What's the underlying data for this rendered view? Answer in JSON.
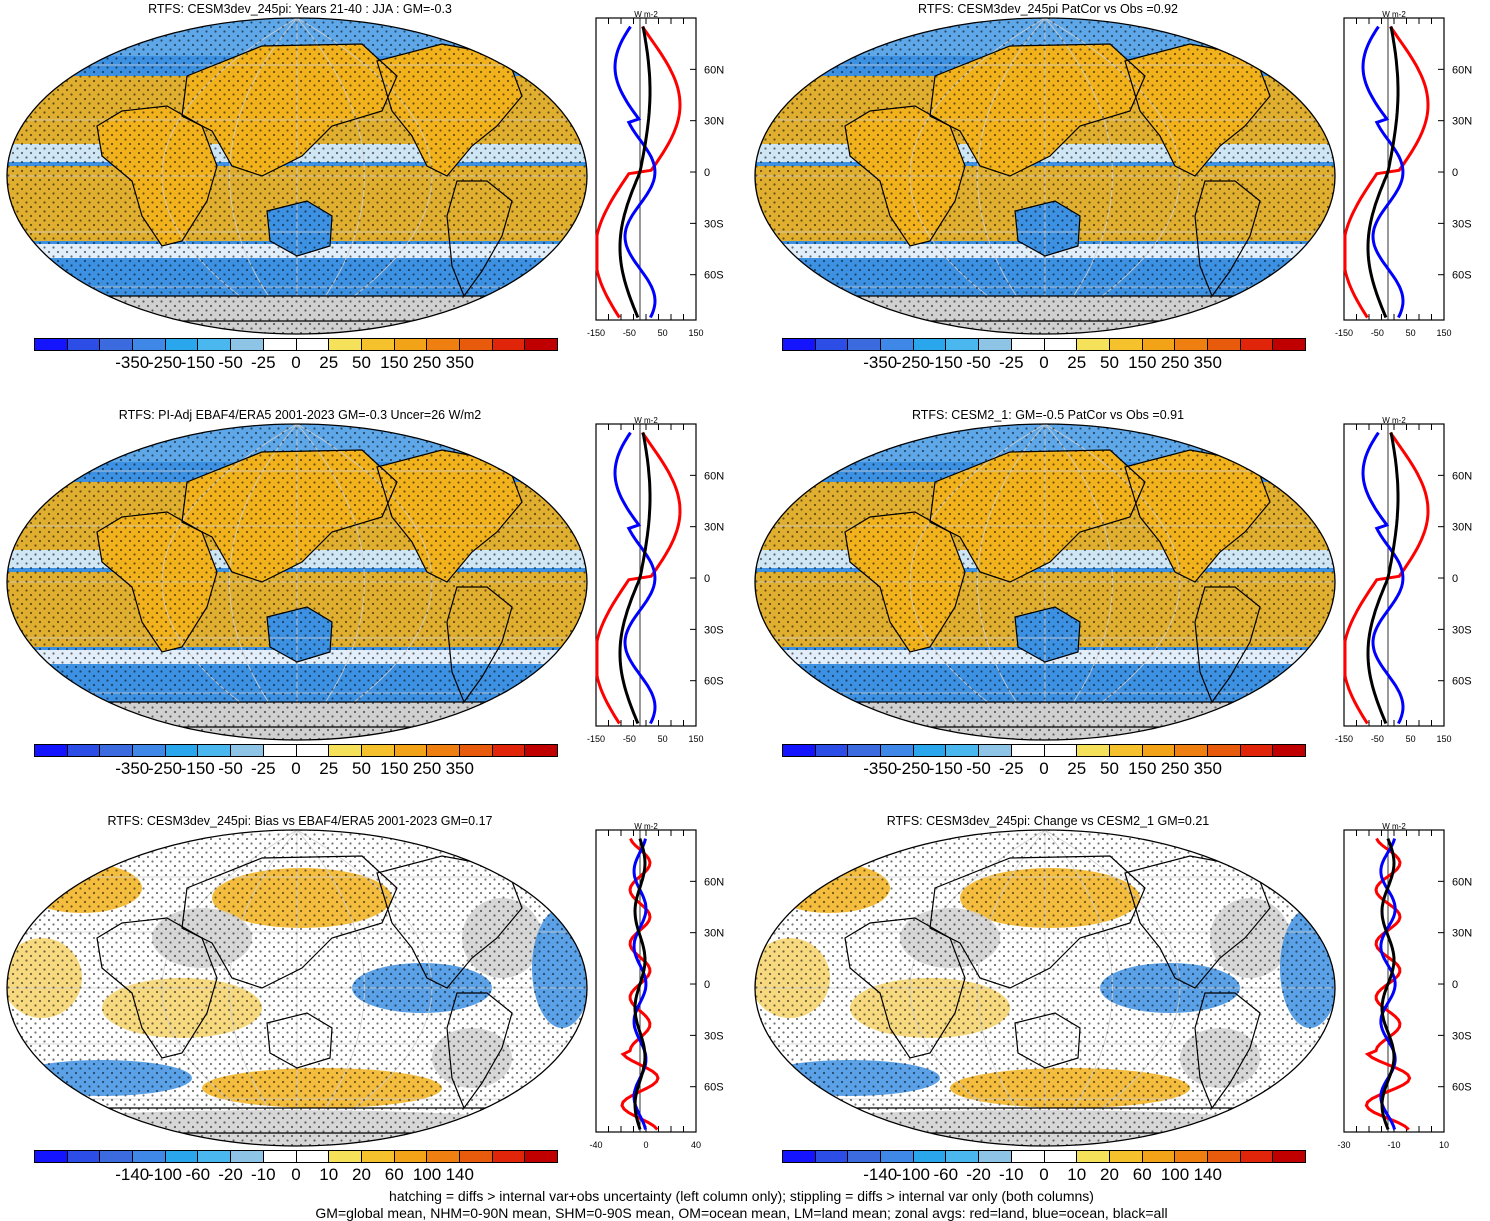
{
  "colorbar": {
    "colors": [
      "#1414ff",
      "#2c4de6",
      "#3c6be0",
      "#3f88e8",
      "#29a6ec",
      "#4ab7ef",
      "#8ec5e6",
      "#ffffff",
      "#ffffff",
      "#f6e25a",
      "#f5c22d",
      "#f3a318",
      "#ef7f10",
      "#e85a0c",
      "#e0250a",
      "#c00000"
    ],
    "labels_main": [
      "-350",
      "-250",
      "-150",
      "-50",
      "-25",
      "0",
      "25",
      "50",
      "150",
      "250",
      "350"
    ],
    "labels_bias": [
      "-140",
      "-100",
      "-60",
      "-20",
      "-10",
      "0",
      "10",
      "20",
      "60",
      "100",
      "140"
    ]
  },
  "palette": {
    "ocean": "#3d91e3",
    "warm": "#f2b21c",
    "warm_light": "#f6d36a",
    "gray": "#d0d0d0",
    "red": "#ff0000",
    "blue": "#0000ff",
    "black": "#000000"
  },
  "zonal": {
    "unit": "W m-2",
    "lat_labels": [
      "60N",
      "30N",
      "0",
      "30S",
      "60S"
    ],
    "x_labels_main": [
      "-150",
      "-50",
      "50",
      "150"
    ],
    "x_labels_bias": [
      "-40",
      "0",
      "40"
    ],
    "x_labels_change": [
      "-30",
      "-10",
      "10"
    ]
  },
  "panels": [
    {
      "title": "RTFS: CESM3dev_245pi: Years 21-40 : JJA : GM=-0.3"
    },
    {
      "title": "RTFS: CESM3dev_245pi PatCor vs Obs =0.92"
    },
    {
      "title": "RTFS: PI-Adj EBAF4/ERA5 2001-2023 GM=-0.3 Uncer=26 W/m2"
    },
    {
      "title": "RTFS: CESM2_1: GM=-0.5 PatCor vs Obs =0.91"
    },
    {
      "title": "RTFS: CESM3dev_245pi: Bias vs EBAF4/ERA5 2001-2023 GM=0.17"
    },
    {
      "title": "RTFS: CESM3dev_245pi: Change vs CESM2_1 GM=0.21"
    }
  ],
  "footer": {
    "line1": "hatching = diffs > internal var+obs uncertainty (left column only); stippling = diffs > internal var only (both columns)",
    "line2": "GM=global mean, NHM=0-90N mean, SHM=0-90S mean, OM=ocean mean, LM=land mean; zonal avgs: red=land, blue=ocean, black=all"
  }
}
